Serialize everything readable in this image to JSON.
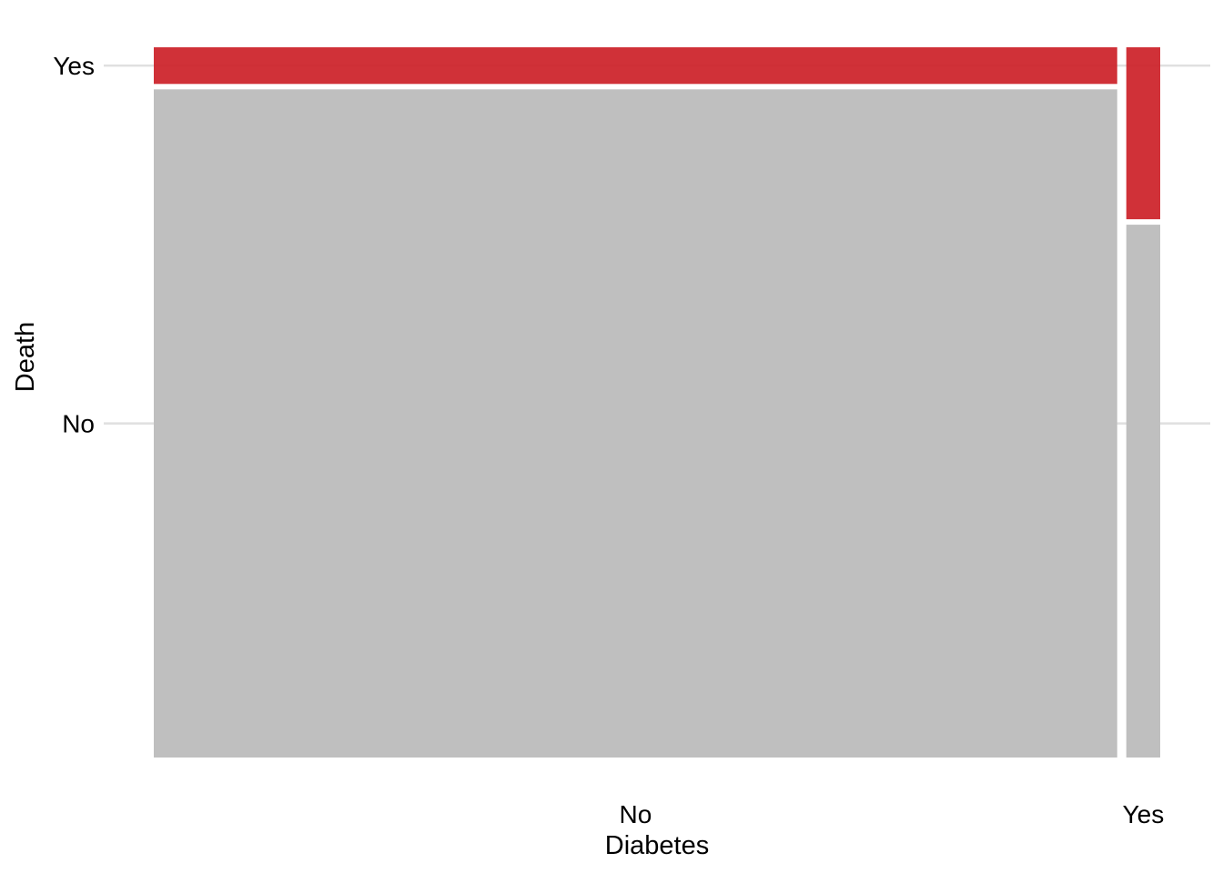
{
  "chart_data": {
    "type": "mosaic",
    "title": "",
    "xlabel": "Diabetes",
    "ylabel": "Death",
    "x_categories": [
      "No",
      "Yes"
    ],
    "y_categories": [
      "No",
      "Yes"
    ],
    "x_proportions": [
      0.966,
      0.034
    ],
    "cells": [
      {
        "x": "No",
        "y": "No",
        "proportion_within_x": 0.948
      },
      {
        "x": "No",
        "y": "Yes",
        "proportion_within_x": 0.052
      },
      {
        "x": "Yes",
        "y": "No",
        "proportion_within_x": 0.756
      },
      {
        "x": "Yes",
        "y": "Yes",
        "proportion_within_x": 0.244
      }
    ],
    "colors": {
      "No": "#bfbfbf",
      "Yes": "#cc1f27"
    },
    "grid": true,
    "legend": "none"
  }
}
